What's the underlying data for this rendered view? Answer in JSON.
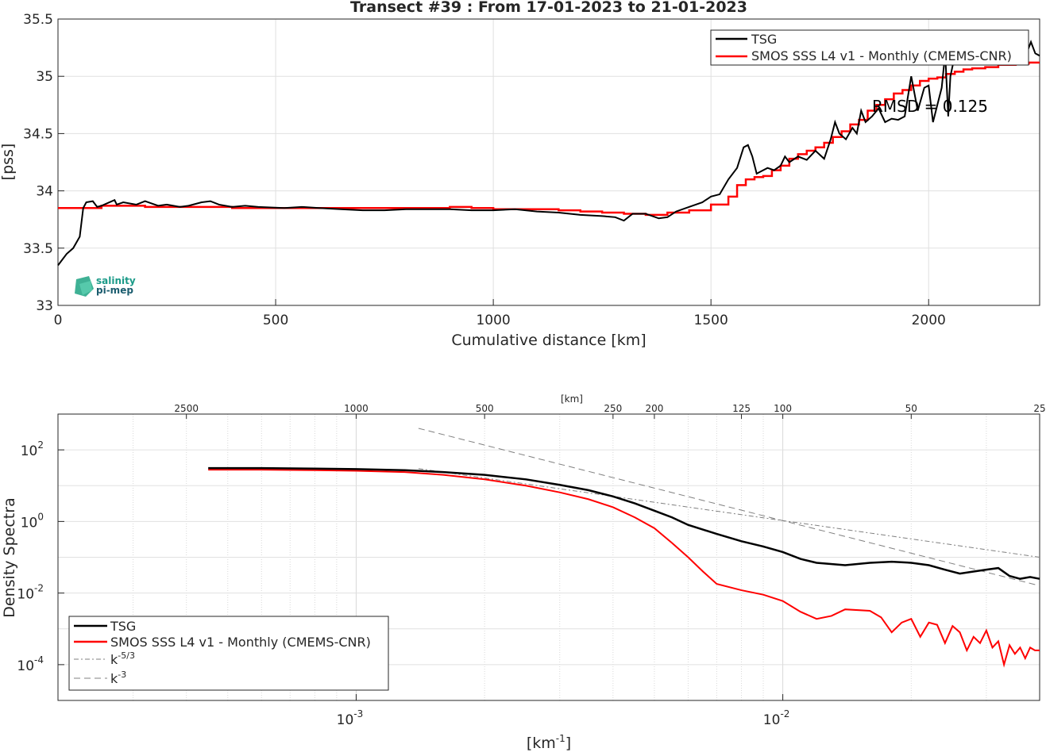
{
  "chart_data": [
    {
      "type": "line",
      "title": "Transect #39 : From 17-01-2023 to 21-01-2023",
      "xlabel": "Cumulative distance [km]",
      "ylabel": "[pss]",
      "xlim": [
        0,
        2255
      ],
      "ylim": [
        33,
        35.5
      ],
      "xticks": [
        "0",
        "500",
        "1000",
        "1500",
        "2000"
      ],
      "yticks": [
        "33",
        "33.5",
        "34",
        "34.5",
        "35",
        "35.5"
      ],
      "grid": true,
      "legend_position": "top-right",
      "annotation": "RMSD = 0.125",
      "logo": {
        "line1": "salinity",
        "line2": "pi-mep"
      },
      "series": [
        {
          "name": "TSG",
          "color": "#000000",
          "x": [
            0,
            10,
            20,
            35,
            50,
            58,
            65,
            80,
            90,
            100,
            130,
            135,
            150,
            180,
            200,
            230,
            250,
            280,
            300,
            330,
            350,
            370,
            400,
            430,
            460,
            520,
            560,
            600,
            650,
            700,
            750,
            800,
            850,
            900,
            950,
            1000,
            1050,
            1100,
            1150,
            1200,
            1250,
            1280,
            1300,
            1320,
            1350,
            1380,
            1400,
            1420,
            1450,
            1480,
            1500,
            1520,
            1540,
            1560,
            1575,
            1585,
            1595,
            1605,
            1615,
            1630,
            1645,
            1660,
            1670,
            1680,
            1700,
            1720,
            1740,
            1760,
            1775,
            1785,
            1795,
            1810,
            1825,
            1835,
            1845,
            1855,
            1870,
            1885,
            1900,
            1915,
            1930,
            1945,
            1960,
            1975,
            1990,
            2000,
            2010,
            2020,
            2030,
            2038,
            2045,
            2050,
            2060,
            2080,
            2100,
            2130,
            2160,
            2190,
            2220,
            2235,
            2245,
            2255
          ],
          "values": [
            33.35,
            33.4,
            33.45,
            33.5,
            33.6,
            33.85,
            33.9,
            33.91,
            33.86,
            33.87,
            33.92,
            33.88,
            33.9,
            33.88,
            33.91,
            33.87,
            33.88,
            33.86,
            33.87,
            33.9,
            33.91,
            33.88,
            33.86,
            33.87,
            33.86,
            33.85,
            33.86,
            33.85,
            33.84,
            33.83,
            33.83,
            33.84,
            33.84,
            33.84,
            33.83,
            33.83,
            33.84,
            33.82,
            33.81,
            33.79,
            33.78,
            33.77,
            33.74,
            33.8,
            33.8,
            33.76,
            33.77,
            33.82,
            33.86,
            33.9,
            33.95,
            33.97,
            34.1,
            34.2,
            34.38,
            34.4,
            34.3,
            34.15,
            34.17,
            34.2,
            34.18,
            34.22,
            34.3,
            34.25,
            34.3,
            34.27,
            34.35,
            34.28,
            34.45,
            34.6,
            34.5,
            34.45,
            34.55,
            34.5,
            34.7,
            34.6,
            34.65,
            34.72,
            34.6,
            34.63,
            34.62,
            34.65,
            35.0,
            34.7,
            34.9,
            34.92,
            34.6,
            34.75,
            34.9,
            35.2,
            34.65,
            35.0,
            35.18,
            35.15,
            35.2,
            35.22,
            35.2,
            35.18,
            35.15,
            35.3,
            35.2,
            35.18
          ]
        },
        {
          "name": "SMOS SSS L4 v1 - Monthly (CMEMS-CNR)",
          "color": "#ff0000",
          "x": [
            0,
            50,
            100,
            150,
            200,
            250,
            300,
            350,
            400,
            450,
            500,
            550,
            600,
            650,
            700,
            750,
            800,
            850,
            900,
            950,
            1000,
            1050,
            1100,
            1150,
            1200,
            1250,
            1300,
            1350,
            1400,
            1450,
            1500,
            1540,
            1560,
            1580,
            1600,
            1620,
            1640,
            1660,
            1680,
            1700,
            1720,
            1740,
            1760,
            1780,
            1800,
            1820,
            1840,
            1860,
            1880,
            1900,
            1920,
            1940,
            1960,
            1980,
            2000,
            2020,
            2040,
            2060,
            2080,
            2100,
            2130,
            2160,
            2200,
            2230,
            2255
          ],
          "values": [
            33.85,
            33.85,
            33.87,
            33.87,
            33.86,
            33.86,
            33.86,
            33.86,
            33.85,
            33.85,
            33.85,
            33.85,
            33.85,
            33.85,
            33.85,
            33.85,
            33.85,
            33.85,
            33.86,
            33.85,
            33.84,
            33.84,
            33.84,
            33.83,
            33.82,
            33.81,
            33.8,
            33.79,
            33.81,
            33.83,
            33.88,
            33.95,
            34.05,
            34.1,
            34.12,
            34.13,
            34.18,
            34.22,
            34.28,
            34.32,
            34.35,
            34.38,
            34.42,
            34.47,
            34.52,
            34.58,
            34.62,
            34.7,
            34.75,
            34.8,
            34.85,
            34.88,
            34.92,
            34.96,
            34.98,
            34.99,
            35.02,
            35.04,
            35.06,
            35.07,
            35.08,
            35.1,
            35.11,
            35.12,
            35.12
          ]
        }
      ]
    },
    {
      "type": "line",
      "xlabel": "[km-1]",
      "ylabel": "Density Spectra",
      "xscale": "log",
      "yscale": "log",
      "xlim": [
        0.0002,
        0.04
      ],
      "ylim": [
        1e-05,
        1000
      ],
      "xticks_bottom": [
        {
          "base": "10",
          "exp": "-3"
        },
        {
          "base": "10",
          "exp": "-2"
        }
      ],
      "yticks": [
        {
          "base": "10",
          "exp": "2"
        },
        {
          "base": "10",
          "exp": "0"
        },
        {
          "base": "10",
          "exp": "-2"
        },
        {
          "base": "10",
          "exp": "-4"
        }
      ],
      "top_axis_label": "[km]",
      "top_axis_ticks": [
        "2500",
        "1000",
        "500",
        "250",
        "200",
        "125",
        "100",
        "50",
        "25"
      ],
      "grid": true,
      "legend_position": "bottom-left",
      "series": [
        {
          "name": "TSG",
          "color": "#000000",
          "x": [
            0.00045,
            0.0006,
            0.0008,
            0.001,
            0.0013,
            0.0016,
            0.002,
            0.0025,
            0.003,
            0.0035,
            0.004,
            0.0045,
            0.005,
            0.0055,
            0.006,
            0.007,
            0.008,
            0.009,
            0.01,
            0.011,
            0.012,
            0.014,
            0.016,
            0.018,
            0.02,
            0.022,
            0.024,
            0.026,
            0.028,
            0.03,
            0.032,
            0.034,
            0.036,
            0.038,
            0.04
          ],
          "values": [
            31,
            31,
            30,
            29,
            27,
            24,
            20,
            15,
            10.5,
            7.5,
            5,
            3.2,
            2,
            1.3,
            0.8,
            0.45,
            0.28,
            0.2,
            0.14,
            0.09,
            0.07,
            0.06,
            0.07,
            0.075,
            0.07,
            0.06,
            0.045,
            0.035,
            0.04,
            0.045,
            0.05,
            0.03,
            0.025,
            0.028,
            0.025
          ]
        },
        {
          "name": "SMOS SSS L4 v1 - Monthly (CMEMS-CNR)",
          "color": "#ff0000",
          "x": [
            0.00045,
            0.0006,
            0.0008,
            0.001,
            0.0013,
            0.0016,
            0.002,
            0.0025,
            0.003,
            0.0035,
            0.004,
            0.0045,
            0.005,
            0.0055,
            0.006,
            0.0065,
            0.007,
            0.008,
            0.009,
            0.01,
            0.011,
            0.012,
            0.013,
            0.014,
            0.016,
            0.017,
            0.018,
            0.019,
            0.02,
            0.021,
            0.022,
            0.023,
            0.024,
            0.025,
            0.026,
            0.027,
            0.028,
            0.029,
            0.03,
            0.031,
            0.032,
            0.033,
            0.034,
            0.035,
            0.036,
            0.037,
            0.038,
            0.039,
            0.04
          ],
          "values": [
            28,
            28,
            27,
            26,
            24,
            20,
            15,
            10,
            6.5,
            4.2,
            2.5,
            1.3,
            0.65,
            0.25,
            0.1,
            0.04,
            0.018,
            0.012,
            0.009,
            0.006,
            0.003,
            0.0019,
            0.0023,
            0.0035,
            0.0032,
            0.0021,
            0.0008,
            0.0015,
            0.0019,
            0.0006,
            0.0015,
            0.0013,
            0.0004,
            0.0012,
            0.0008,
            0.00025,
            0.0006,
            0.0004,
            0.0009,
            0.0003,
            0.00045,
            0.0001,
            0.00035,
            0.0002,
            0.0003,
            0.00015,
            0.0003,
            0.00025,
            0.00025
          ]
        },
        {
          "name": "k-5/3",
          "color": "#808080",
          "x": [
            0.0014,
            0.04
          ],
          "values": [
            30,
            0.1
          ]
        },
        {
          "name": "k-3",
          "color": "#808080",
          "x": [
            0.0014,
            0.04
          ],
          "values": [
            400,
            0.016
          ]
        }
      ]
    }
  ]
}
